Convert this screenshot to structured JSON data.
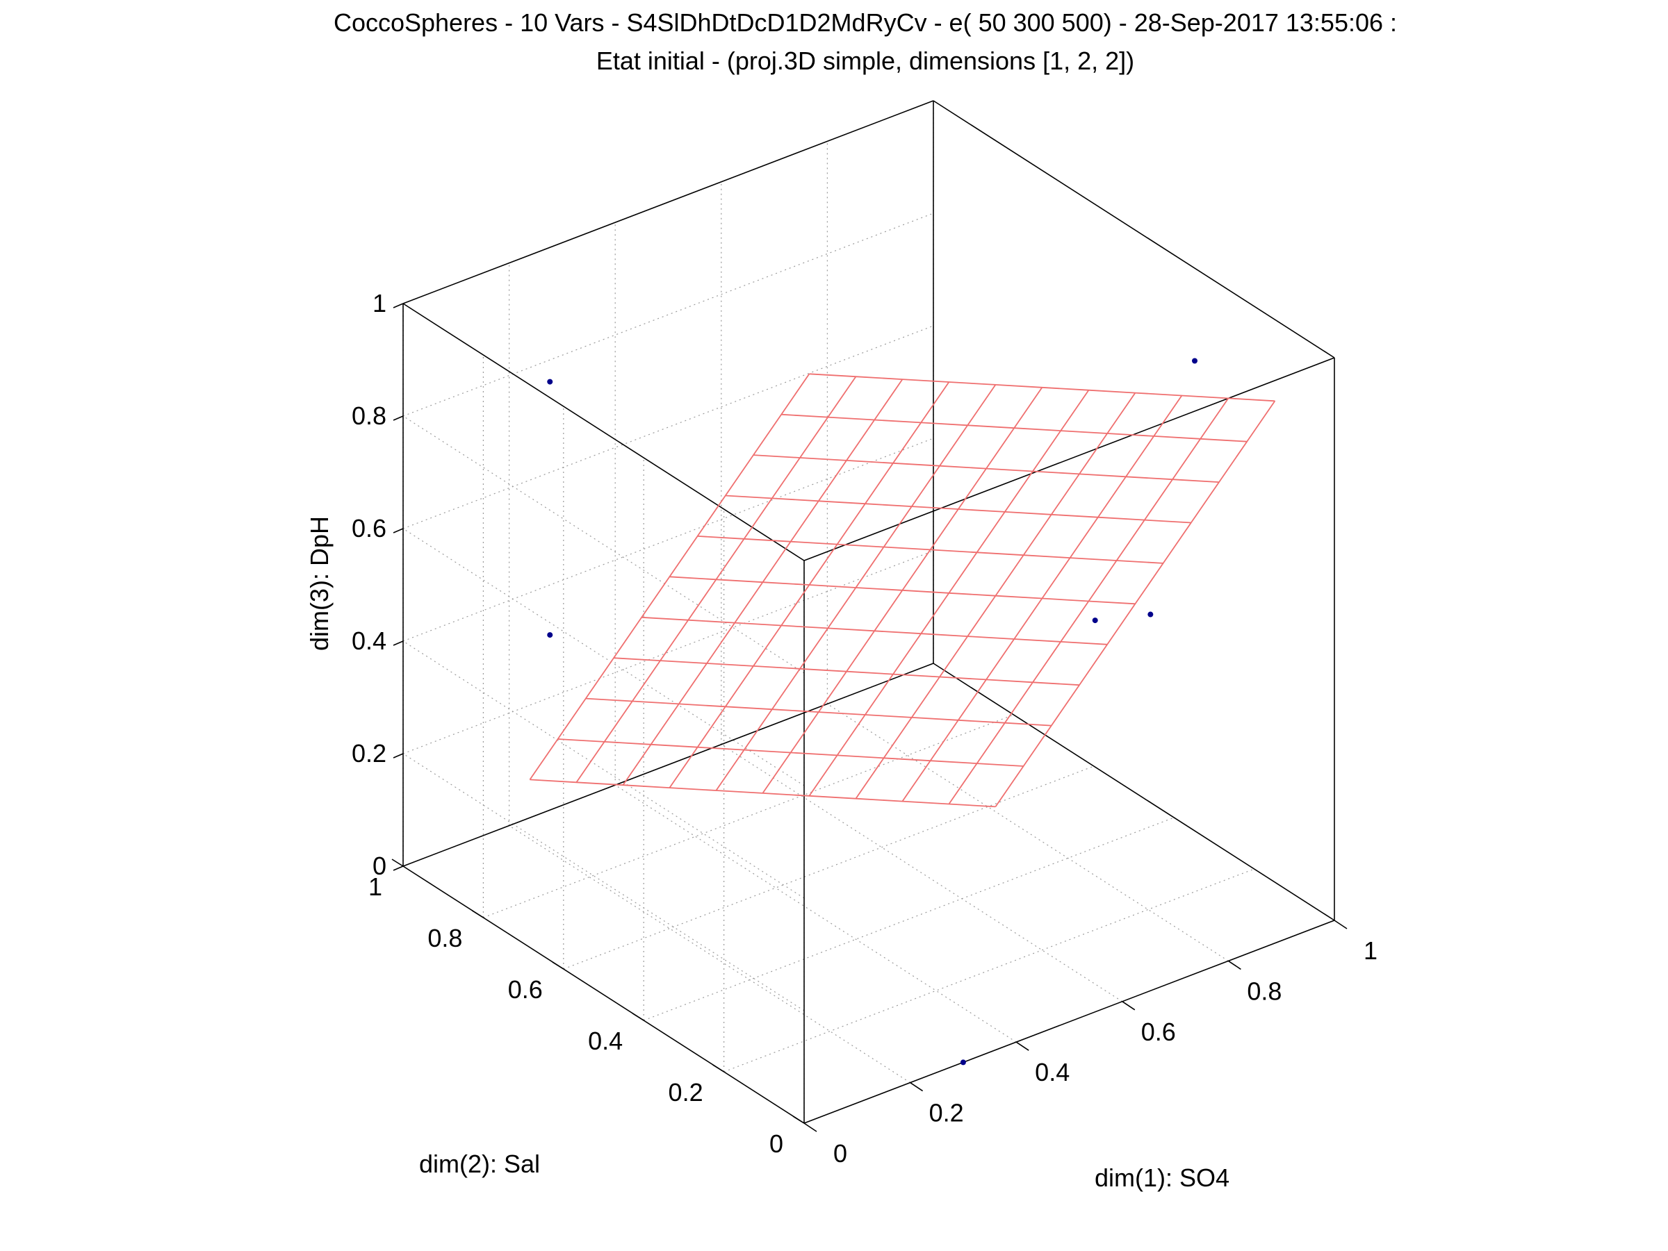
{
  "chart_data": {
    "type": "scatter",
    "projection": "3d",
    "title": [
      "CoccoSpheres - 10 Vars - S4SlDhDtDcD1D2MdRyCv - e( 50 300 500) - 28-Sep-2017 13:55:06 :",
      "Etat initial - (proj.3D simple, dimensions [1, 2, 2])"
    ],
    "xlabel": "dim(1): SO4",
    "ylabel": "dim(2): Sal",
    "zlabel": "dim(3): DpH",
    "xlim": [
      0,
      1
    ],
    "ylim": [
      0,
      1
    ],
    "zlim": [
      0,
      1
    ],
    "x_ticks": [
      "0",
      "0.2",
      "0.4",
      "0.6",
      "0.8",
      "1"
    ],
    "y_ticks": [
      "0",
      "0.2",
      "0.4",
      "0.6",
      "0.8",
      "1"
    ],
    "z_ticks": [
      "0",
      "0.2",
      "0.4",
      "0.6",
      "0.8",
      "1"
    ],
    "grid": true,
    "points_color": "#00008b",
    "mesh_color": "#ef6f6f",
    "points": [
      {
        "x": 0.85,
        "y": 0.15,
        "z": 0.98
      },
      {
        "x": 0.05,
        "y": 0.7,
        "z": 0.98
      },
      {
        "x": 0.05,
        "y": 0.7,
        "z": 0.53
      },
      {
        "x": 0.7,
        "y": 0.2,
        "z": 0.55
      },
      {
        "x": 0.88,
        "y": 0.3,
        "z": 0.45
      },
      {
        "x": 0.3,
        "y": 0.0,
        "z": 0.0
      }
    ],
    "mesh": {
      "resolution": 10,
      "corners": [
        {
          "x": 0.55,
          "y": 0.25,
          "z": 0.25
        },
        {
          "x": 0.05,
          "y": 0.75,
          "z": 0.25
        },
        {
          "x": 0.35,
          "y": 0.45,
          "z": 1.0
        },
        {
          "x": 0.85,
          "y": -0.05,
          "z": 1.0
        }
      ]
    }
  }
}
